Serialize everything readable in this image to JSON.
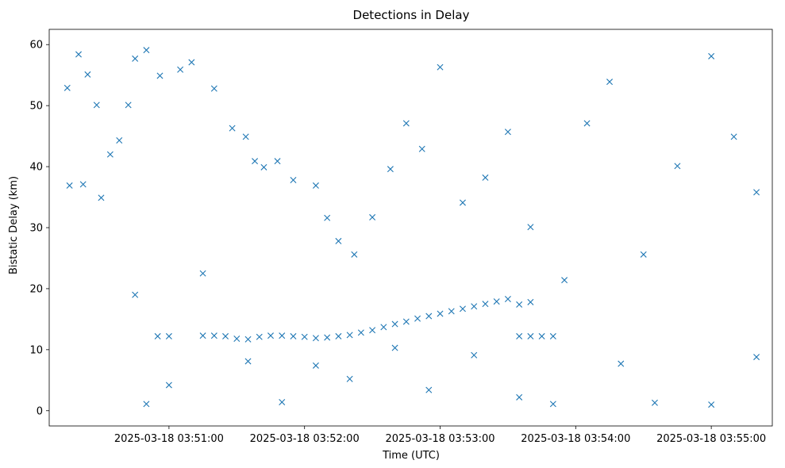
{
  "chart_data": {
    "type": "scatter",
    "title": "Detections in Delay",
    "xlabel": "Time (UTC)",
    "ylabel": "Bistatic Delay (km)",
    "marker": "x",
    "color": "#1f77b4",
    "grid": false,
    "xlim": [
      "2025-03-18 03:50:07",
      "2025-03-18 03:55:27"
    ],
    "ylim": [
      -2.5,
      62.5
    ],
    "x_ticks": [
      "2025-03-18 03:51:00",
      "2025-03-18 03:52:00",
      "2025-03-18 03:53:00",
      "2025-03-18 03:54:00",
      "2025-03-18 03:55:00"
    ],
    "y_ticks": [
      0,
      10,
      20,
      30,
      40,
      50,
      60
    ],
    "series": [
      {
        "name": "",
        "points": [
          [
            "2025-03-18 03:50:55",
            12.2
          ],
          [
            "2025-03-18 03:51:00",
            12.2
          ],
          [
            "2025-03-18 03:51:15",
            12.3
          ],
          [
            "2025-03-18 03:51:20",
            12.3
          ],
          [
            "2025-03-18 03:51:25",
            12.2
          ],
          [
            "2025-03-18 03:51:30",
            11.8
          ],
          [
            "2025-03-18 03:51:35",
            11.7
          ],
          [
            "2025-03-18 03:51:40",
            12.1
          ],
          [
            "2025-03-18 03:51:45",
            12.3
          ],
          [
            "2025-03-18 03:51:50",
            12.3
          ],
          [
            "2025-03-18 03:51:55",
            12.2
          ],
          [
            "2025-03-18 03:52:00",
            12.1
          ],
          [
            "2025-03-18 03:52:05",
            11.9
          ],
          [
            "2025-03-18 03:52:10",
            12.0
          ],
          [
            "2025-03-18 03:52:15",
            12.2
          ],
          [
            "2025-03-18 03:52:20",
            12.4
          ],
          [
            "2025-03-18 03:52:25",
            12.8
          ],
          [
            "2025-03-18 03:52:30",
            13.2
          ],
          [
            "2025-03-18 03:52:35",
            13.7
          ],
          [
            "2025-03-18 03:52:40",
            14.2
          ],
          [
            "2025-03-18 03:52:45",
            14.6
          ],
          [
            "2025-03-18 03:52:50",
            15.1
          ],
          [
            "2025-03-18 03:52:55",
            15.5
          ],
          [
            "2025-03-18 03:53:00",
            15.9
          ],
          [
            "2025-03-18 03:53:05",
            16.3
          ],
          [
            "2025-03-18 03:53:10",
            16.7
          ],
          [
            "2025-03-18 03:53:15",
            17.1
          ],
          [
            "2025-03-18 03:53:20",
            17.5
          ],
          [
            "2025-03-18 03:53:25",
            17.9
          ],
          [
            "2025-03-18 03:53:30",
            18.3
          ],
          [
            "2025-03-18 03:53:35",
            17.4
          ],
          [
            "2025-03-18 03:53:40",
            17.8
          ],
          [
            "2025-03-18 03:53:35",
            12.2
          ],
          [
            "2025-03-18 03:53:40",
            12.2
          ],
          [
            "2025-03-18 03:53:45",
            12.2
          ],
          [
            "2025-03-18 03:53:50",
            12.2
          ],
          [
            "2025-03-18 03:50:15",
            52.9
          ],
          [
            "2025-03-18 03:50:16",
            36.9
          ],
          [
            "2025-03-18 03:50:20",
            58.4
          ],
          [
            "2025-03-18 03:50:24",
            55.1
          ],
          [
            "2025-03-18 03:50:28",
            50.1
          ],
          [
            "2025-03-18 03:50:22",
            37.1
          ],
          [
            "2025-03-18 03:50:30",
            34.9
          ],
          [
            "2025-03-18 03:50:34",
            42.0
          ],
          [
            "2025-03-18 03:50:38",
            44.3
          ],
          [
            "2025-03-18 03:50:42",
            50.1
          ],
          [
            "2025-03-18 03:50:45",
            57.7
          ],
          [
            "2025-03-18 03:50:50",
            59.1
          ],
          [
            "2025-03-18 03:50:56",
            54.9
          ],
          [
            "2025-03-18 03:51:05",
            55.9
          ],
          [
            "2025-03-18 03:51:10",
            57.1
          ],
          [
            "2025-03-18 03:51:20",
            52.8
          ],
          [
            "2025-03-18 03:51:28",
            46.3
          ],
          [
            "2025-03-18 03:51:34",
            44.9
          ],
          [
            "2025-03-18 03:51:38",
            40.9
          ],
          [
            "2025-03-18 03:51:42",
            39.9
          ],
          [
            "2025-03-18 03:51:48",
            40.9
          ],
          [
            "2025-03-18 03:51:55",
            37.8
          ],
          [
            "2025-03-18 03:52:05",
            36.9
          ],
          [
            "2025-03-18 03:52:10",
            31.6
          ],
          [
            "2025-03-18 03:52:15",
            27.8
          ],
          [
            "2025-03-18 03:52:22",
            25.6
          ],
          [
            "2025-03-18 03:52:30",
            31.7
          ],
          [
            "2025-03-18 03:52:38",
            39.6
          ],
          [
            "2025-03-18 03:52:45",
            47.1
          ],
          [
            "2025-03-18 03:52:52",
            42.9
          ],
          [
            "2025-03-18 03:53:00",
            56.3
          ],
          [
            "2025-03-18 03:53:10",
            34.1
          ],
          [
            "2025-03-18 03:53:20",
            38.2
          ],
          [
            "2025-03-18 03:53:30",
            45.7
          ],
          [
            "2025-03-18 03:53:40",
            30.1
          ],
          [
            "2025-03-18 03:53:55",
            21.4
          ],
          [
            "2025-03-18 03:54:05",
            47.1
          ],
          [
            "2025-03-18 03:54:15",
            53.9
          ],
          [
            "2025-03-18 03:54:30",
            25.6
          ],
          [
            "2025-03-18 03:54:45",
            40.1
          ],
          [
            "2025-03-18 03:55:00",
            58.1
          ],
          [
            "2025-03-18 03:55:10",
            44.9
          ],
          [
            "2025-03-18 03:55:20",
            35.8
          ],
          [
            "2025-03-18 03:55:20",
            8.8
          ],
          [
            "2025-03-18 03:50:45",
            19.0
          ],
          [
            "2025-03-18 03:50:50",
            1.1
          ],
          [
            "2025-03-18 03:51:00",
            4.2
          ],
          [
            "2025-03-18 03:51:15",
            22.5
          ],
          [
            "2025-03-18 03:51:35",
            8.1
          ],
          [
            "2025-03-18 03:51:50",
            1.4
          ],
          [
            "2025-03-18 03:52:05",
            7.4
          ],
          [
            "2025-03-18 03:52:20",
            5.2
          ],
          [
            "2025-03-18 03:52:40",
            10.3
          ],
          [
            "2025-03-18 03:52:55",
            3.4
          ],
          [
            "2025-03-18 03:53:15",
            9.1
          ],
          [
            "2025-03-18 03:53:35",
            2.2
          ],
          [
            "2025-03-18 03:53:50",
            1.1
          ],
          [
            "2025-03-18 03:54:20",
            7.7
          ],
          [
            "2025-03-18 03:54:35",
            1.3
          ],
          [
            "2025-03-18 03:55:00",
            1.0
          ]
        ]
      }
    ]
  }
}
